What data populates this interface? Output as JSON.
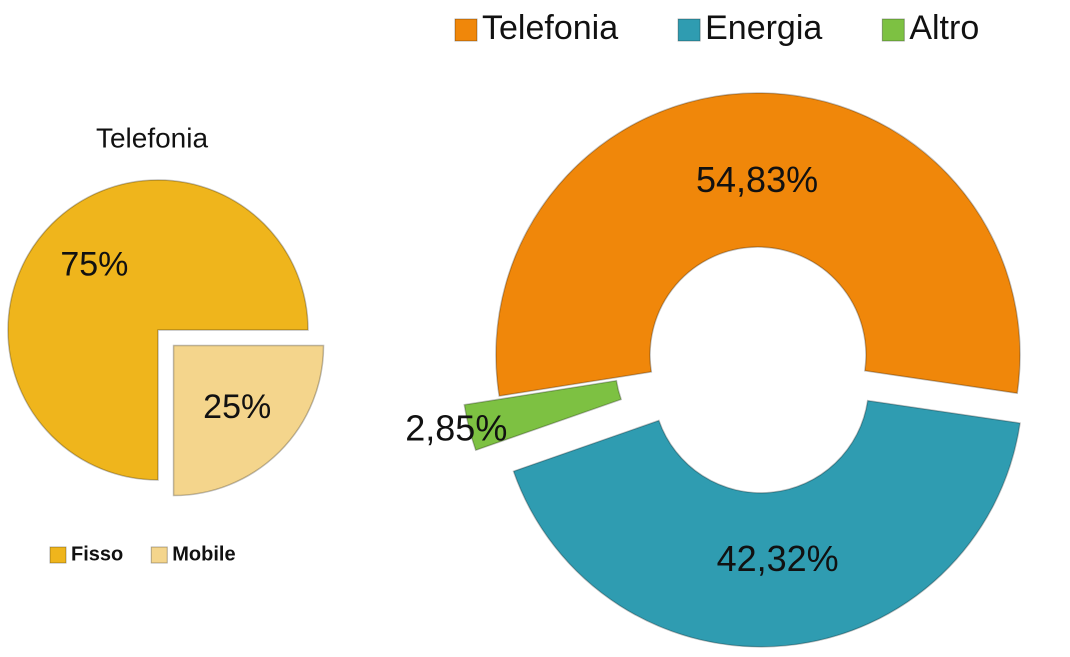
{
  "chart_data": [
    {
      "type": "pie",
      "title": "Telefonia",
      "categories": [
        "Fisso",
        "Mobile"
      ],
      "values": [
        75,
        25
      ],
      "value_labels": [
        "75%",
        "25%"
      ],
      "colors": [
        "#efb51c",
        "#f4d58c"
      ],
      "legend": "bottom"
    },
    {
      "type": "donut",
      "categories": [
        "Telefonia",
        "Energia",
        "Altro"
      ],
      "values": [
        54.83,
        42.32,
        2.85
      ],
      "value_labels": [
        "54,83%",
        "42,32%",
        "2,85%"
      ],
      "colors": [
        "#f0870a",
        "#2f9cb1",
        "#7dc142"
      ],
      "legend": "top"
    }
  ]
}
